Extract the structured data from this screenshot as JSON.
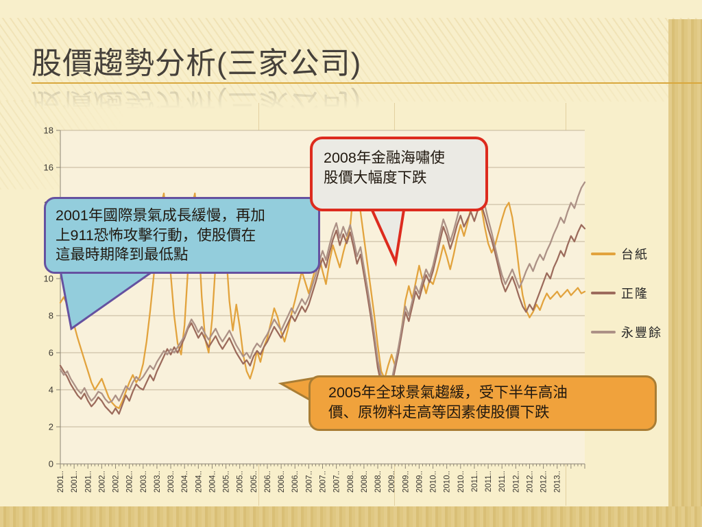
{
  "slide": {
    "title": "股價趨勢分析(三家公司)",
    "accent_line_color": "#D9A73C",
    "background": {
      "base_color": "#F8EFCB",
      "stripe_gold_light": "#E3CC8B",
      "stripe_gold_dark": "#D9BF76"
    }
  },
  "callouts": [
    {
      "id": "callout-2001",
      "text": "2001年國際景氣成長緩慢，再加\n上911恐怖攻擊行動，使股價在\n這最時期降到最低點",
      "fill": "#93CDDC",
      "border": "#6551A0"
    },
    {
      "id": "callout-2008",
      "text": "2008年金融海嘯使\n股價大幅度下跌",
      "fill": "#EBEAE4",
      "border": "#DD2B1E"
    },
    {
      "id": "callout-2005",
      "text": "2005年全球景氣趨緩，受下半年高油\n價、原物料走高等因素使股價下跌",
      "fill": "#F0A23C",
      "border": "#A97D34"
    }
  ],
  "chart_data": {
    "type": "line",
    "x_start": "2001-01",
    "x_end": "2013-09",
    "x_interval": "monthly",
    "x_tick_labels": [
      "2001..",
      "2001..",
      "2001..",
      "2002..",
      "2002..",
      "2002..",
      "2003..",
      "2003..",
      "2003..",
      "2004..",
      "2004..",
      "2004..",
      "2005..",
      "2005..",
      "2005..",
      "2006..",
      "2006..",
      "2006..",
      "2007..",
      "2007..",
      "2007..",
      "2008..",
      "2008..",
      "2008..",
      "2009..",
      "2009..",
      "2009..",
      "2010..",
      "2010..",
      "2010..",
      "2011..",
      "2011..",
      "2011..",
      "2012..",
      "2012..",
      "2012..",
      "2013.."
    ],
    "x_tick_label_interval_months": 4,
    "y_ticks": [
      0,
      2,
      4,
      6,
      8,
      10,
      12,
      14,
      16,
      18
    ],
    "ylim": [
      0,
      18
    ],
    "grid": "horizontal",
    "legend_position": "right",
    "grid_color": "#C3B59B",
    "axis_color": "#8C8474",
    "plot_bg": "#F9F1DB",
    "series": [
      {
        "name": "台紙",
        "color": "#E2A33D",
        "values": [
          8.7,
          9.0,
          8.6,
          8.2,
          7.5,
          6.8,
          6.2,
          5.6,
          5.0,
          4.4,
          4.0,
          4.3,
          4.6,
          4.1,
          3.6,
          3.3,
          3.1,
          3.0,
          3.4,
          3.9,
          4.4,
          4.8,
          4.4,
          4.7,
          5.4,
          6.6,
          8.2,
          10.0,
          12.0,
          13.8,
          14.6,
          12.8,
          10.2,
          8.0,
          6.5,
          5.9,
          7.5,
          10.5,
          13.8,
          14.6,
          12.5,
          9.0,
          6.7,
          6.0,
          7.8,
          10.8,
          13.2,
          14.0,
          11.5,
          8.8,
          7.2,
          8.6,
          7.4,
          5.9,
          5.0,
          4.6,
          5.2,
          6.1,
          5.5,
          6.3,
          6.8,
          7.6,
          8.4,
          7.9,
          7.1,
          6.6,
          7.3,
          8.1,
          8.8,
          9.6,
          10.4,
          9.8,
          9.2,
          9.9,
          10.6,
          11.2,
          10.4,
          9.7,
          10.9,
          11.8,
          11.2,
          10.6,
          11.4,
          12.1,
          12.8,
          14.9,
          15.3,
          13.6,
          12.2,
          10.8,
          9.4,
          8.0,
          6.4,
          5.0,
          4.6,
          5.3,
          5.9,
          5.3,
          6.2,
          7.4,
          8.8,
          9.6,
          8.9,
          9.8,
          10.7,
          9.9,
          9.2,
          9.9,
          9.7,
          10.3,
          11.0,
          11.8,
          11.2,
          10.5,
          11.3,
          12.2,
          12.9,
          12.3,
          13.0,
          13.8,
          14.2,
          14.8,
          13.9,
          12.8,
          11.9,
          11.4,
          11.8,
          12.5,
          13.2,
          13.8,
          14.1,
          13.3,
          12.0,
          10.4,
          9.1,
          8.3,
          7.9,
          8.2,
          8.6,
          8.3,
          8.8,
          9.2,
          8.9,
          9.1,
          9.3,
          9.0,
          9.2,
          9.4,
          9.1,
          9.3,
          9.5,
          9.2,
          9.3
        ]
      },
      {
        "name": "正隆",
        "color": "#9C6B5C",
        "values": [
          5.3,
          5.0,
          4.7,
          4.3,
          4.0,
          3.7,
          3.5,
          3.8,
          3.4,
          3.1,
          3.3,
          3.6,
          3.4,
          3.1,
          2.9,
          2.7,
          3.0,
          2.7,
          3.2,
          3.7,
          3.4,
          3.9,
          4.3,
          4.1,
          4.0,
          4.4,
          4.8,
          4.5,
          5.0,
          5.4,
          5.8,
          6.2,
          5.9,
          6.3,
          6.0,
          6.4,
          6.8,
          7.3,
          7.6,
          7.2,
          6.8,
          7.1,
          6.7,
          6.3,
          6.6,
          6.9,
          6.5,
          6.2,
          6.5,
          6.8,
          6.4,
          6.0,
          5.7,
          5.4,
          5.6,
          5.3,
          5.8,
          6.1,
          5.9,
          6.3,
          6.6,
          7.0,
          7.4,
          7.1,
          6.8,
          7.2,
          7.6,
          8.0,
          7.7,
          8.1,
          8.5,
          8.2,
          8.6,
          9.2,
          9.8,
          10.5,
          11.1,
          10.6,
          11.4,
          12.1,
          12.6,
          11.8,
          12.4,
          11.9,
          12.5,
          11.7,
          10.8,
          11.3,
          10.2,
          9.1,
          7.9,
          6.6,
          5.2,
          4.3,
          3.8,
          3.6,
          4.2,
          5.1,
          6.0,
          7.1,
          8.2,
          7.7,
          8.5,
          9.3,
          8.9,
          9.6,
          10.2,
          9.8,
          10.4,
          11.2,
          12.0,
          12.8,
          12.3,
          11.6,
          12.2,
          12.9,
          13.4,
          12.8,
          13.2,
          13.6,
          13.1,
          13.7,
          14.0,
          13.4,
          12.7,
          12.1,
          11.4,
          10.6,
          9.8,
          9.3,
          9.7,
          10.1,
          9.6,
          9.0,
          8.5,
          8.2,
          8.6,
          8.3,
          8.8,
          9.3,
          9.8,
          10.3,
          10.0,
          10.6,
          11.0,
          11.5,
          11.2,
          11.8,
          12.3,
          12.0,
          12.5,
          12.9,
          12.7
        ]
      },
      {
        "name": "永豐餘",
        "color": "#AC9186",
        "values": [
          5.1,
          4.8,
          5.0,
          4.6,
          4.3,
          4.0,
          3.8,
          4.1,
          3.7,
          3.4,
          3.6,
          3.9,
          3.8,
          3.5,
          3.3,
          3.4,
          3.7,
          3.4,
          3.8,
          4.2,
          4.0,
          4.4,
          4.7,
          4.5,
          4.7,
          5.0,
          5.3,
          5.1,
          5.5,
          5.8,
          6.1,
          5.9,
          6.2,
          6.0,
          6.3,
          6.6,
          6.9,
          7.4,
          7.8,
          7.5,
          7.1,
          7.4,
          7.0,
          6.7,
          7.0,
          7.3,
          6.9,
          6.6,
          6.9,
          7.2,
          6.8,
          6.4,
          6.1,
          5.8,
          6.0,
          5.7,
          6.2,
          6.5,
          6.3,
          6.7,
          7.0,
          7.4,
          7.8,
          7.5,
          7.2,
          7.6,
          8.0,
          8.4,
          8.1,
          8.5,
          8.9,
          8.6,
          9.0,
          9.6,
          10.2,
          10.9,
          11.5,
          11.0,
          11.8,
          12.5,
          13.0,
          12.2,
          12.8,
          12.3,
          12.9,
          12.1,
          11.2,
          11.7,
          10.6,
          9.5,
          8.3,
          7.0,
          5.6,
          4.7,
          4.2,
          3.9,
          4.5,
          5.4,
          6.3,
          7.4,
          8.5,
          8.0,
          8.8,
          9.6,
          9.2,
          9.9,
          10.5,
          10.1,
          10.7,
          11.5,
          12.4,
          13.2,
          12.7,
          12.0,
          12.6,
          13.3,
          14.0,
          14.6,
          13.9,
          14.3,
          13.8,
          14.4,
          14.7,
          14.0,
          13.2,
          12.5,
          11.7,
          10.9,
          10.2,
          9.7,
          10.1,
          10.5,
          10.0,
          9.5,
          9.9,
          10.4,
          10.8,
          10.4,
          10.9,
          11.3,
          11.0,
          11.5,
          11.9,
          12.4,
          12.8,
          13.3,
          13.0,
          13.6,
          14.1,
          13.8,
          14.4,
          14.9,
          15.2
        ]
      }
    ]
  }
}
